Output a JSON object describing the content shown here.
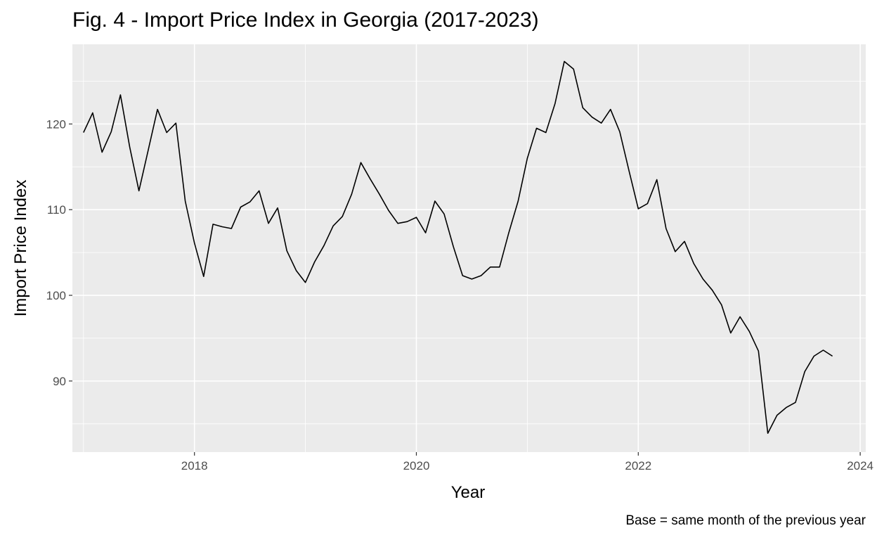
{
  "chart_data": {
    "type": "line",
    "title": "Fig. 4 - Import Price Index in Georgia (2017-2023)",
    "caption": "Base = same month of the previous year",
    "xlabel": "Year",
    "ylabel": "Import Price Index",
    "xlim": [
      2016.9,
      2024.05
    ],
    "ylim": [
      81.7,
      129.3
    ],
    "x_ticks": [
      2018,
      2020,
      2022,
      2024
    ],
    "y_ticks": [
      90,
      100,
      110,
      120
    ],
    "grid": true,
    "colors": {
      "panel": "#ebebeb",
      "grid": "#ffffff",
      "line": "#000000",
      "tick_text": "#4d4d4d"
    },
    "series": [
      {
        "x": [
          2017.0,
          2017.083,
          2017.167,
          2017.25,
          2017.333,
          2017.417,
          2017.5,
          2017.583,
          2017.667,
          2017.75,
          2017.833,
          2017.917,
          2018.0,
          2018.083,
          2018.167,
          2018.25,
          2018.333,
          2018.417,
          2018.5,
          2018.583,
          2018.667,
          2018.75,
          2018.833,
          2018.917,
          2019.0,
          2019.083,
          2019.167,
          2019.25,
          2019.333,
          2019.417,
          2019.5,
          2019.583,
          2019.667,
          2019.75,
          2019.833,
          2019.917,
          2020.0,
          2020.083,
          2020.167,
          2020.25,
          2020.333,
          2020.417,
          2020.5,
          2020.583,
          2020.667,
          2020.75,
          2020.833,
          2020.917,
          2021.0,
          2021.083,
          2021.167,
          2021.25,
          2021.333,
          2021.417,
          2021.5,
          2021.583,
          2021.667,
          2021.75,
          2021.833,
          2021.917,
          2022.0,
          2022.083,
          2022.167,
          2022.25,
          2022.333,
          2022.417,
          2022.5,
          2022.583,
          2022.667,
          2022.75,
          2022.833,
          2022.917,
          2023.0,
          2023.083,
          2023.167,
          2023.25,
          2023.333,
          2023.417,
          2023.5,
          2023.583,
          2023.667,
          2023.75
        ],
        "values": [
          119.0,
          121.3,
          116.7,
          119.1,
          123.4,
          117.3,
          112.2,
          116.9,
          121.7,
          119.0,
          120.1,
          111.0,
          106.1,
          102.2,
          108.3,
          108.0,
          107.8,
          110.3,
          110.9,
          112.2,
          108.4,
          110.2,
          105.2,
          102.9,
          101.5,
          103.9,
          105.8,
          108.1,
          109.2,
          111.8,
          115.5,
          113.6,
          111.8,
          109.9,
          108.4,
          108.6,
          109.1,
          107.3,
          111.0,
          109.5,
          105.7,
          102.3,
          101.9,
          102.3,
          103.3,
          103.3,
          107.3,
          111.0,
          116.0,
          119.5,
          119.0,
          122.4,
          127.3,
          126.4,
          121.9,
          120.8,
          120.1,
          121.7,
          119.1,
          114.5,
          110.1,
          110.7,
          113.5,
          107.8,
          105.1,
          106.3,
          103.7,
          101.9,
          100.6,
          98.9,
          95.6,
          97.5,
          95.8,
          93.5,
          83.9,
          86.0,
          86.9,
          87.5,
          91.1,
          92.9,
          93.6,
          92.9
        ]
      }
    ]
  }
}
